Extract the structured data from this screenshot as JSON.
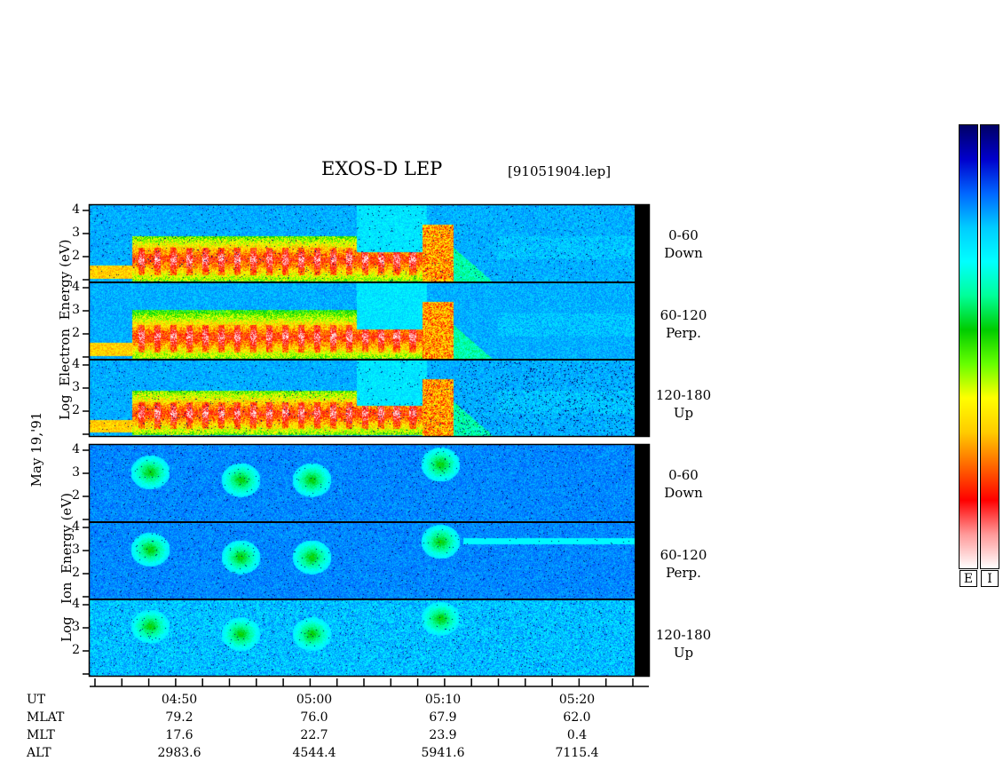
{
  "header": {
    "title": "EXOS-D LEP",
    "file": "[91051904.lep]"
  },
  "electron_group": {
    "y_label_lines": [
      "Log",
      "Electron",
      "Energy",
      "(eV)"
    ],
    "channels": [
      {
        "line1": "0-60",
        "line2": "Down"
      },
      {
        "line1": "60-120",
        "line2": "Perp."
      },
      {
        "line1": "120-180",
        "line2": "Up"
      }
    ]
  },
  "ion_group": {
    "y_label_lines": [
      "Log",
      "Ion",
      "Energy",
      "(eV)"
    ],
    "channels": [
      {
        "line1": "0-60",
        "line2": "Down"
      },
      {
        "line1": "60-120",
        "line2": "Perp."
      },
      {
        "line1": "120-180",
        "line2": "Up"
      }
    ]
  },
  "date_label": "May 19,'91",
  "y_ticks": [
    "4",
    "3",
    "2"
  ],
  "footer": {
    "row_labels": [
      "UT",
      "MLAT",
      "MLT",
      "ALT"
    ],
    "columns": [
      {
        "UT": "04:50",
        "MLAT": "79.2",
        "MLT": "17.6",
        "ALT": "2983.6"
      },
      {
        "UT": "05:00",
        "MLAT": "76.0",
        "MLT": "22.7",
        "ALT": "4544.4"
      },
      {
        "UT": "05:10",
        "MLAT": "67.9",
        "MLT": "23.9",
        "ALT": "5941.6"
      },
      {
        "UT": "05:20",
        "MLAT": "62.0",
        "MLT": "0.4",
        "ALT": "7115.4"
      }
    ]
  },
  "colorbar": {
    "labels": [
      "E",
      "I"
    ],
    "colors_top_to_bottom": [
      "#000066",
      "#0000cc",
      "#0066ff",
      "#00ccff",
      "#00ffff",
      "#00ff99",
      "#00cc00",
      "#66ff00",
      "#ffff00",
      "#ffcc00",
      "#ff6600",
      "#ff0000",
      "#ff9999",
      "#ffffff"
    ]
  },
  "chart_data": {
    "type": "heatmap",
    "title": "EXOS-D LEP",
    "subtitle": "[91051904.lep]",
    "x_axis": {
      "label": "UT",
      "ticks": [
        "04:50",
        "05:00",
        "05:10",
        "05:20"
      ]
    },
    "y_axis": {
      "label": "Log Energy (eV)",
      "ticks": [
        2,
        3,
        4
      ],
      "range": [
        1,
        4.2
      ]
    },
    "panels": [
      {
        "species": "Electron",
        "pitch": "0-60 Down"
      },
      {
        "species": "Electron",
        "pitch": "60-120 Perp."
      },
      {
        "species": "Electron",
        "pitch": "120-180 Up"
      },
      {
        "species": "Ion",
        "pitch": "0-60 Down"
      },
      {
        "species": "Ion",
        "pitch": "60-120 Perp."
      },
      {
        "species": "Ion",
        "pitch": "120-180 Up"
      }
    ],
    "grid": false,
    "legend": "colorbar right"
  }
}
